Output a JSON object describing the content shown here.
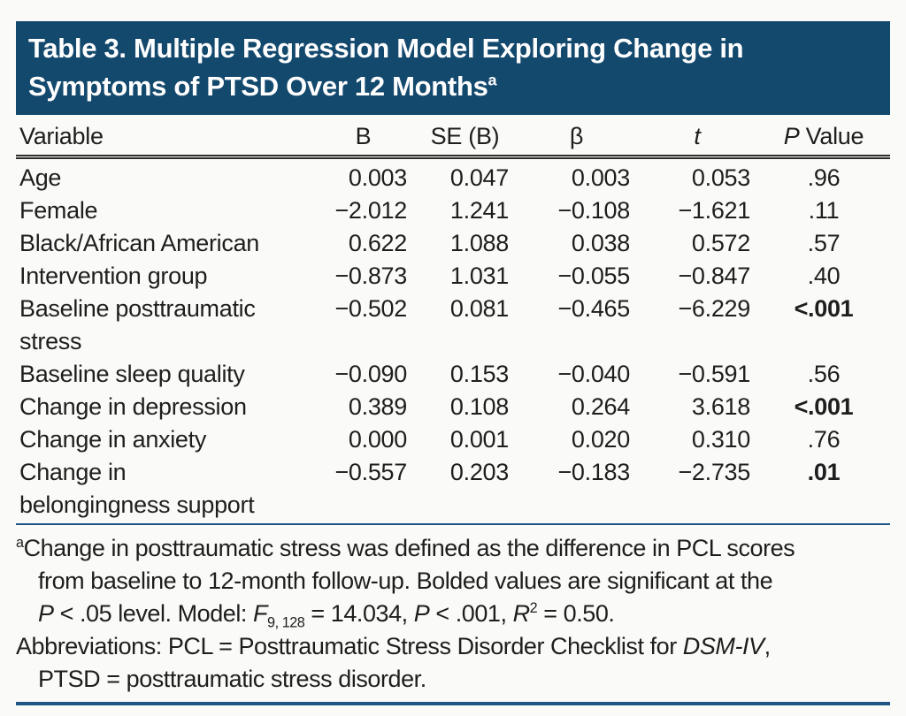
{
  "page": {
    "background": "#fafbf8",
    "accent_navy": "#14496e",
    "rule_blue": "#1d5586",
    "text_color": "#1e1e1e"
  },
  "title": {
    "text": "Table 3. Multiple Regression Model Exploring Change in Symptoms of PTSD Over 12 Months",
    "footnote_marker": "a",
    "segments": [
      {
        "t": "Table 3. Multiple Regression Model Exploring Change in\nSymptoms of PTSD Over 12 Months"
      },
      {
        "t": "a",
        "s": "sup"
      }
    ]
  },
  "table": {
    "columns": [
      {
        "key": "variable",
        "label": "Variable",
        "segments": [
          {
            "t": "Variable"
          }
        ]
      },
      {
        "key": "b",
        "label": "B",
        "segments": [
          {
            "t": "B"
          }
        ]
      },
      {
        "key": "se_b",
        "label": "SE (B)",
        "segments": [
          {
            "t": "SE (B)"
          }
        ]
      },
      {
        "key": "beta",
        "label": "β",
        "segments": [
          {
            "t": "β"
          }
        ]
      },
      {
        "key": "t",
        "label": "t",
        "segments": [
          {
            "t": "t",
            "s": "i"
          }
        ]
      },
      {
        "key": "p",
        "label": "P Value",
        "segments": [
          {
            "t": "P",
            "s": "i"
          },
          {
            "t": " Value"
          }
        ]
      }
    ],
    "rows": [
      {
        "variable": "Age",
        "b": "0.003",
        "se_b": "0.047",
        "beta": "0.003",
        "t": "0.053",
        "p": ".96",
        "p_bold": false
      },
      {
        "variable": "Female",
        "b": "−2.012",
        "se_b": "1.241",
        "beta": "−0.108",
        "t": "−1.621",
        "p": ".11",
        "p_bold": false
      },
      {
        "variable": "Black/African American",
        "b": "0.622",
        "se_b": "1.088",
        "beta": "0.038",
        "t": "0.572",
        "p": ".57",
        "p_bold": false
      },
      {
        "variable": "Intervention group",
        "b": "−0.873",
        "se_b": "1.031",
        "beta": "−0.055",
        "t": "−0.847",
        "p": ".40",
        "p_bold": false
      },
      {
        "variable": [
          "Baseline posttraumatic",
          "stress"
        ],
        "b": "−0.502",
        "se_b": "0.081",
        "beta": "−0.465",
        "t": "−6.229",
        "p": "<.001",
        "p_bold": true
      },
      {
        "variable": "Baseline sleep quality",
        "b": "−0.090",
        "se_b": "0.153",
        "beta": "−0.040",
        "t": "−0.591",
        "p": ".56",
        "p_bold": false
      },
      {
        "variable": "Change in depression",
        "b": "0.389",
        "se_b": "0.108",
        "beta": "0.264",
        "t": "3.618",
        "p": "<.001",
        "p_bold": true
      },
      {
        "variable": "Change in anxiety",
        "b": "0.000",
        "se_b": "0.001",
        "beta": "0.020",
        "t": "0.310",
        "p": ".76",
        "p_bold": false
      },
      {
        "variable": [
          "Change in",
          "belongingness support"
        ],
        "b": "−0.557",
        "se_b": "0.203",
        "beta": "−0.183",
        "t": "−2.735",
        "p": ".01",
        "p_bold": true
      }
    ]
  },
  "footnotes": {
    "note_a": [
      {
        "t": "a",
        "s": "sup"
      },
      {
        "t": "Change in posttraumatic stress was defined as the difference in PCL scores\nfrom baseline to 12-month follow-up. Bolded values are significant at the\n"
      },
      {
        "t": "P",
        "s": "i"
      },
      {
        "t": " < .05 level. Model: "
      },
      {
        "t": "F",
        "s": "i"
      },
      {
        "t": "9, 128",
        "s": "sub"
      },
      {
        "t": " = 14.034, "
      },
      {
        "t": "P",
        "s": "i"
      },
      {
        "t": " < .001, "
      },
      {
        "t": "R",
        "s": "i"
      },
      {
        "t": "2",
        "s": "sup"
      },
      {
        "t": " = 0.50."
      }
    ],
    "abbreviations": [
      {
        "t": "Abbreviations: PCL = Posttraumatic Stress Disorder Checklist for "
      },
      {
        "t": "DSM-IV",
        "s": "i"
      },
      {
        "t": ",\nPTSD = posttraumatic stress disorder."
      }
    ]
  }
}
